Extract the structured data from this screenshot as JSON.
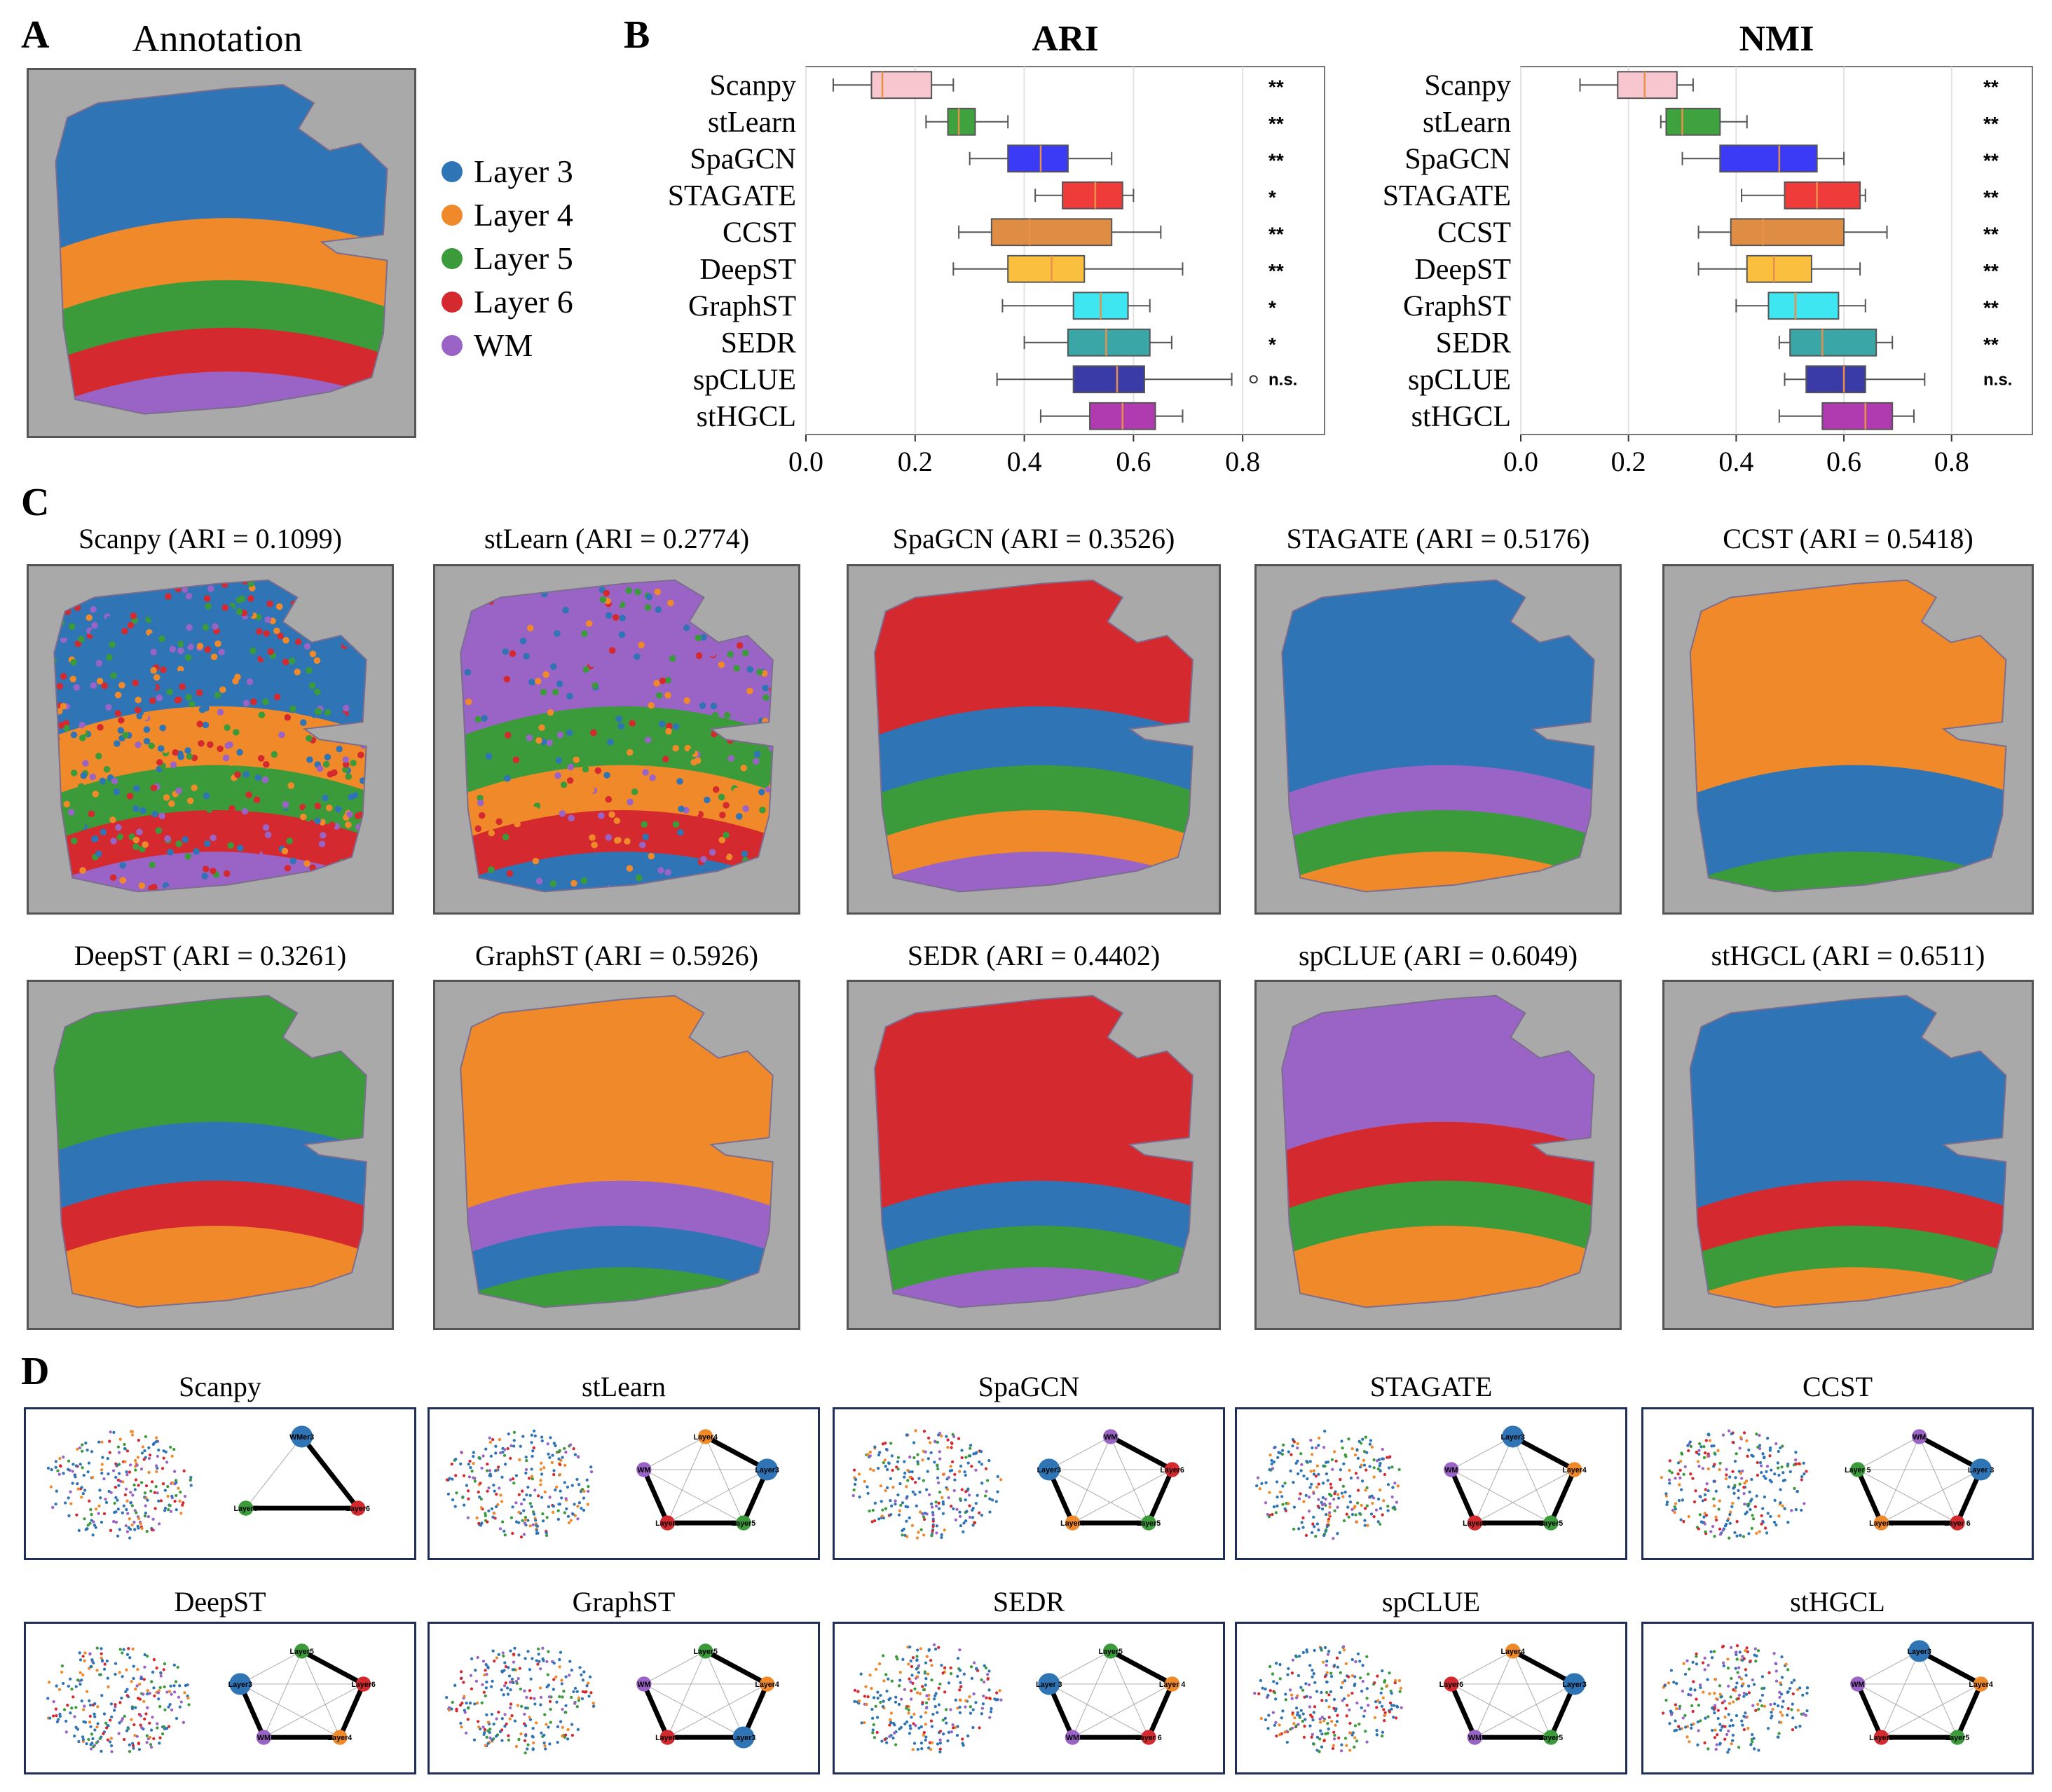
{
  "panels": {
    "a": {
      "letter": "A",
      "title": "Annotation"
    },
    "b": {
      "letter": "B"
    },
    "c": {
      "letter": "C"
    },
    "d": {
      "letter": "D"
    }
  },
  "legend": [
    {
      "label": "Layer 3",
      "color": "#2f74b5"
    },
    {
      "label": "Layer 4",
      "color": "#f0892a"
    },
    {
      "label": "Layer 5",
      "color": "#3b9b3b"
    },
    {
      "label": "Layer 6",
      "color": "#d42a2f"
    },
    {
      "label": "WM",
      "color": "#9a63c6"
    }
  ],
  "chart_data": [
    {
      "type": "box",
      "title": "ARI",
      "xlim": [
        0.0,
        0.95
      ],
      "xticks": [
        "0.0",
        "0.2",
        "0.4",
        "0.6",
        "0.8"
      ],
      "tick_values": [
        0.0,
        0.2,
        0.4,
        0.6,
        0.8
      ],
      "grid": true,
      "categories": [
        "Scanpy",
        "stLearn",
        "SpaGCN",
        "STAGATE",
        "CCST",
        "DeepST",
        "GraphST",
        "SEDR",
        "spCLUE",
        "stHGCL"
      ],
      "boxes": [
        {
          "min": 0.05,
          "q1": 0.12,
          "median": 0.14,
          "q3": 0.23,
          "max": 0.27,
          "color": "#f7c6cf",
          "sig": "**"
        },
        {
          "min": 0.22,
          "q1": 0.26,
          "median": 0.28,
          "q3": 0.31,
          "max": 0.37,
          "color": "#3ea23e",
          "sig": "**"
        },
        {
          "min": 0.3,
          "q1": 0.37,
          "median": 0.43,
          "q3": 0.48,
          "max": 0.56,
          "color": "#3b3bf5",
          "sig": "**"
        },
        {
          "min": 0.42,
          "q1": 0.47,
          "median": 0.53,
          "q3": 0.58,
          "max": 0.6,
          "color": "#f03b3b",
          "sig": "*"
        },
        {
          "min": 0.28,
          "q1": 0.34,
          "median": 0.41,
          "q3": 0.56,
          "max": 0.65,
          "color": "#df8d45",
          "sig": "**"
        },
        {
          "min": 0.27,
          "q1": 0.37,
          "median": 0.45,
          "q3": 0.51,
          "max": 0.69,
          "color": "#fbbf40",
          "sig": "**"
        },
        {
          "min": 0.36,
          "q1": 0.49,
          "median": 0.54,
          "q3": 0.59,
          "max": 0.63,
          "color": "#3de6f0",
          "sig": "*"
        },
        {
          "min": 0.4,
          "q1": 0.48,
          "median": 0.55,
          "q3": 0.63,
          "max": 0.67,
          "color": "#3aa6a6",
          "sig": "*"
        },
        {
          "min": 0.35,
          "q1": 0.49,
          "median": 0.57,
          "q3": 0.62,
          "max": 0.78,
          "color": "#3b3ba7",
          "sig": "n.s.",
          "outlier": 0.82
        },
        {
          "min": 0.43,
          "q1": 0.52,
          "median": 0.58,
          "q3": 0.64,
          "max": 0.69,
          "color": "#b03ab0",
          "sig": ""
        }
      ]
    },
    {
      "type": "box",
      "title": "NMI",
      "xlim": [
        0.0,
        0.95
      ],
      "xticks": [
        "0.0",
        "0.2",
        "0.4",
        "0.6",
        "0.8"
      ],
      "tick_values": [
        0.0,
        0.2,
        0.4,
        0.6,
        0.8
      ],
      "grid": true,
      "categories": [
        "Scanpy",
        "stLearn",
        "SpaGCN",
        "STAGATE",
        "CCST",
        "DeepST",
        "GraphST",
        "SEDR",
        "spCLUE",
        "stHGCL"
      ],
      "boxes": [
        {
          "min": 0.11,
          "q1": 0.18,
          "median": 0.23,
          "q3": 0.29,
          "max": 0.32,
          "color": "#f7c6cf",
          "sig": "**"
        },
        {
          "min": 0.26,
          "q1": 0.27,
          "median": 0.3,
          "q3": 0.37,
          "max": 0.42,
          "color": "#3ea23e",
          "sig": "**"
        },
        {
          "min": 0.3,
          "q1": 0.37,
          "median": 0.48,
          "q3": 0.55,
          "max": 0.6,
          "color": "#3b3bf5",
          "sig": "**"
        },
        {
          "min": 0.41,
          "q1": 0.49,
          "median": 0.55,
          "q3": 0.63,
          "max": 0.64,
          "color": "#f03b3b",
          "sig": "**"
        },
        {
          "min": 0.33,
          "q1": 0.39,
          "median": 0.45,
          "q3": 0.6,
          "max": 0.68,
          "color": "#df8d45",
          "sig": "**"
        },
        {
          "min": 0.33,
          "q1": 0.42,
          "median": 0.47,
          "q3": 0.54,
          "max": 0.63,
          "color": "#fbbf40",
          "sig": "**"
        },
        {
          "min": 0.4,
          "q1": 0.46,
          "median": 0.51,
          "q3": 0.59,
          "max": 0.64,
          "color": "#3de6f0",
          "sig": "**"
        },
        {
          "min": 0.48,
          "q1": 0.5,
          "median": 0.56,
          "q3": 0.66,
          "max": 0.69,
          "color": "#3aa6a6",
          "sig": "**"
        },
        {
          "min": 0.49,
          "q1": 0.53,
          "median": 0.6,
          "q3": 0.64,
          "max": 0.75,
          "color": "#3b3ba7",
          "sig": "n.s."
        },
        {
          "min": 0.48,
          "q1": 0.56,
          "median": 0.64,
          "q3": 0.69,
          "max": 0.73,
          "color": "#b03ab0",
          "sig": ""
        }
      ]
    }
  ],
  "tissue_maps": [
    {
      "title": "Scanpy (ARI = 0.1099)",
      "pattern": "mixed",
      "colors": [
        "#2f74b5",
        "#f0892a",
        "#3b9b3b",
        "#d42a2f",
        "#9a63c6"
      ]
    },
    {
      "title": "stLearn (ARI = 0.2774)",
      "pattern": "noisy-bands",
      "colors": [
        "#9a63c6",
        "#3b9b3b",
        "#f0892a",
        "#d42a2f",
        "#2f74b5"
      ]
    },
    {
      "title": "SpaGCN (ARI = 0.3526)",
      "pattern": "bands",
      "colors": [
        "#d42a2f",
        "#2f74b5",
        "#3b9b3b",
        "#f0892a",
        "#9a63c6"
      ]
    },
    {
      "title": "STAGATE (ARI = 0.5176)",
      "pattern": "bands",
      "colors": [
        "#2f74b5",
        "#2f74b5",
        "#9a63c6",
        "#3b9b3b",
        "#f0892a"
      ]
    },
    {
      "title": "CCST (ARI = 0.5418)",
      "pattern": "bands",
      "colors": [
        "#f0892a",
        "#f0892a",
        "#2f74b5",
        "#2f74b5",
        "#3b9b3b"
      ]
    },
    {
      "title": "DeepST (ARI = 0.3261)",
      "pattern": "bands",
      "colors": [
        "#3b9b3b",
        "#2f74b5",
        "#d42a2f",
        "#f0892a",
        "#f0892a"
      ]
    },
    {
      "title": "GraphST (ARI = 0.5926)",
      "pattern": "bands",
      "colors": [
        "#f0892a",
        "#f0892a",
        "#9a63c6",
        "#2f74b5",
        "#3b9b3b"
      ]
    },
    {
      "title": "SEDR (ARI = 0.4402)",
      "pattern": "bands",
      "colors": [
        "#d42a2f",
        "#d42a2f",
        "#2f74b5",
        "#3b9b3b",
        "#9a63c6"
      ]
    },
    {
      "title": "spCLUE (ARI = 0.6049)",
      "pattern": "bands",
      "colors": [
        "#9a63c6",
        "#d42a2f",
        "#3b9b3b",
        "#f0892a",
        "#f0892a"
      ]
    },
    {
      "title": "stHGCL (ARI = 0.6511)",
      "pattern": "bands",
      "colors": [
        "#2f74b5",
        "#2f74b5",
        "#d42a2f",
        "#3b9b3b",
        "#f0892a"
      ]
    }
  ],
  "umaps": [
    {
      "title": "Scanpy",
      "nodes": [
        "WMer3",
        "Layer6",
        "Layer5"
      ]
    },
    {
      "title": "stLearn",
      "nodes": [
        "Layer4",
        "Layer3",
        "Layer5",
        "Layer6",
        "WM"
      ]
    },
    {
      "title": "SpaGCN",
      "nodes": [
        "WM",
        "Layer6",
        "Layer5",
        "Layer4",
        "Layer3"
      ]
    },
    {
      "title": "STAGATE",
      "nodes": [
        "Layer3",
        "Layer4",
        "Layer5",
        "Layer6",
        "WM"
      ]
    },
    {
      "title": "CCST",
      "nodes": [
        "WM",
        "Layer 3",
        "Layer 6",
        "Layer4",
        "Layer 5"
      ]
    },
    {
      "title": "DeepST",
      "nodes": [
        "Layer5",
        "Layer6",
        "Layer4",
        "WM",
        "Layer3"
      ]
    },
    {
      "title": "GraphST",
      "nodes": [
        "Layer5",
        "Layer4",
        "Layer3",
        "Layer6",
        "WM"
      ]
    },
    {
      "title": "SEDR",
      "nodes": [
        "Layer5",
        "Layer 4",
        "Layer 6",
        "WM",
        "Layer 3"
      ]
    },
    {
      "title": "spCLUE",
      "nodes": [
        "Layer4",
        "Layer3",
        "Layer5",
        "WM",
        "Layer6"
      ]
    },
    {
      "title": "stHGCL",
      "nodes": [
        "Layer3",
        "Layer4",
        "Layer5",
        "Layer6",
        "WM"
      ]
    }
  ]
}
